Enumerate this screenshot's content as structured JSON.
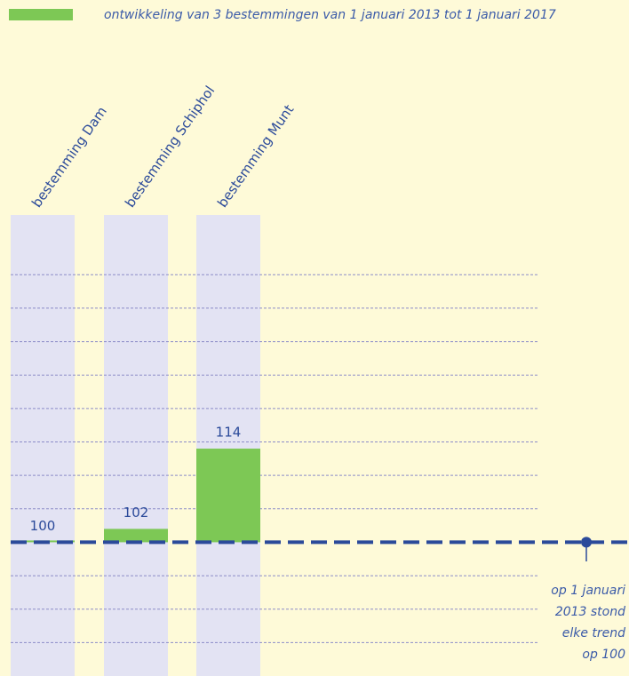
{
  "chart_data": {
    "type": "bar",
    "legend": "ontwikkeling van 3 bestemmingen van 1 januari 2013 tot 1 januari 2017",
    "categories": [
      "bestemming Dam",
      "bestemming Schiphol",
      "bestemming Munt"
    ],
    "values": [
      100,
      102,
      114
    ],
    "color": "#7dc855",
    "baseline": 100,
    "annotation": [
      "op 1 januari",
      "2013 stond",
      "elke trend",
      "op 100"
    ],
    "ylim": [
      80,
      150
    ],
    "yticks": [
      85,
      90,
      95,
      105,
      110,
      115,
      120,
      125,
      130,
      135,
      140
    ],
    "grid": true
  }
}
